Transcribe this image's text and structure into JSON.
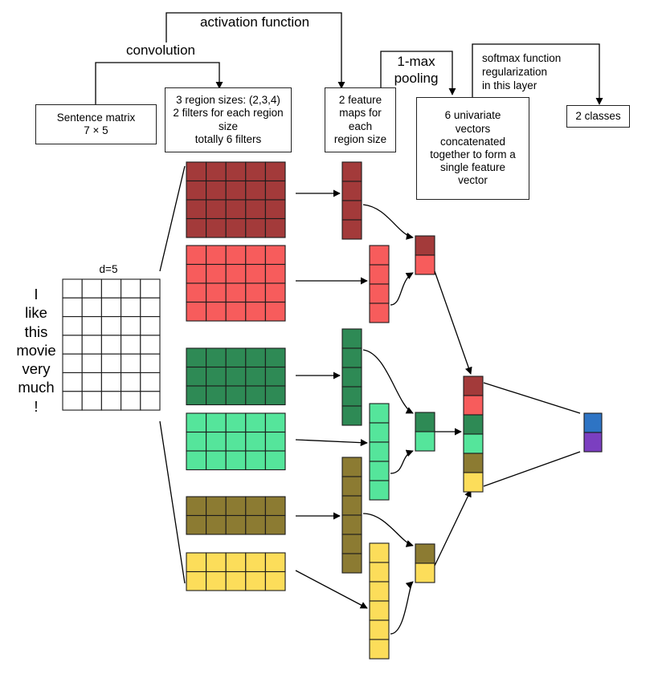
{
  "labels": {
    "activation_function": "activation function",
    "convolution": "convolution",
    "max_pooling": "1-max\npooling",
    "softmax": "softmax function\nregularization\nin this layer",
    "d_label": "d=5"
  },
  "boxes": {
    "sentence_matrix": "Sentence matrix\n7 × 5",
    "region_sizes": "3 region sizes: (2,3,4)\n2 filters for each region\nsize\ntotally 6 filters",
    "feature_maps": "2 feature\nmaps for\neach\nregion size",
    "univariate_vectors": "6 univariate\nvectors\nconcatenated\ntogether to form a\nsingle feature\nvector",
    "classes": "2 classes"
  },
  "sentence_words": [
    "I",
    "like",
    "this",
    "movie",
    "very",
    "much",
    "!"
  ],
  "colors": {
    "dark_red": "#a33a3a",
    "light_red": "#f75c5c",
    "dark_green": "#2e8a55",
    "light_green": "#55e59b",
    "olive": "#8c7b32",
    "yellow": "#fcdd5a",
    "output_blue": "#2e74c4",
    "output_purple": "#7b3fc0"
  }
}
